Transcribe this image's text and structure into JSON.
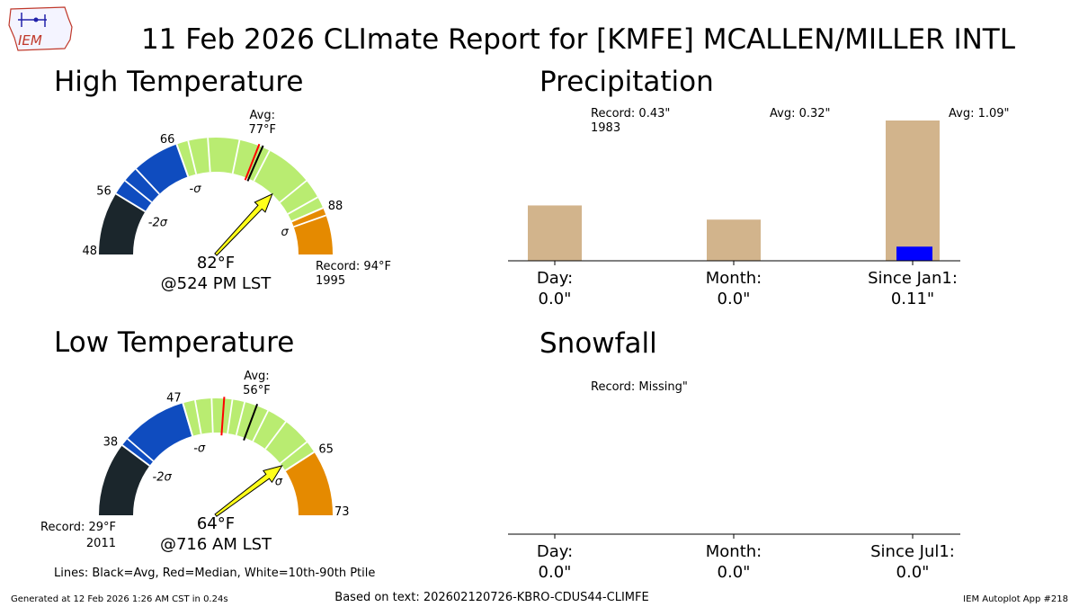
{
  "header": {
    "title": "11 Feb 2026 CLImate Report for [KMFE] MCALLEN/MILLER INTL",
    "logo_text": "IEM"
  },
  "colors": {
    "extreme_low": "#1b262c",
    "low": "#0f4cbf",
    "normal": "#b9ec71",
    "high": "#e58a00",
    "needle": "#ffff1a",
    "avg_line": "#000000",
    "median_line": "#ff0000",
    "ptile_line": "#ffffff",
    "bar_climo": "#d2b48c",
    "bar_obs": "#0000ff"
  },
  "chart_data": [
    {
      "id": "high",
      "type": "gauge",
      "title": "High Temperature",
      "min": 48,
      "max": 94,
      "bands": [
        {
          "from": 48,
          "to": 56,
          "color": "#1b262c"
        },
        {
          "from": 56,
          "to": 66,
          "color": "#0f4cbf"
        },
        {
          "from": 66,
          "to": 88,
          "color": "#b9ec71"
        },
        {
          "from": 88,
          "to": 94,
          "color": "#e58a00"
        }
      ],
      "threshold_labels": [
        {
          "value": 48,
          "text": "48"
        },
        {
          "value": 56,
          "text": "56"
        },
        {
          "value": 66,
          "text": "66"
        },
        {
          "value": 88,
          "text": "88"
        }
      ],
      "sigma_labels": [
        {
          "value": 56,
          "text": "-2σ"
        },
        {
          "value": 66,
          "text": "-σ"
        },
        {
          "value": 88,
          "text": "σ"
        }
      ],
      "avg": 77,
      "median": 76.5,
      "ptile_lines": [
        58,
        60,
        67.5,
        70,
        74,
        78,
        84,
        86.5,
        89
      ],
      "observed": 82,
      "avg_text": [
        "Avg:",
        "77°F"
      ],
      "value_text": "82°F",
      "time_text": "@524 PM LST",
      "record_text": [
        "Record: 94°F",
        "1995"
      ],
      "record_side": "right"
    },
    {
      "id": "low",
      "type": "gauge",
      "title": "Low Temperature",
      "min": 29,
      "max": 73,
      "bands": [
        {
          "from": 29,
          "to": 38,
          "color": "#1b262c"
        },
        {
          "from": 38,
          "to": 47,
          "color": "#0f4cbf"
        },
        {
          "from": 47,
          "to": 65,
          "color": "#b9ec71"
        },
        {
          "from": 65,
          "to": 73,
          "color": "#e58a00"
        }
      ],
      "threshold_labels": [
        {
          "value": 38,
          "text": "38"
        },
        {
          "value": 47,
          "text": "47"
        },
        {
          "value": 65,
          "text": "65"
        },
        {
          "value": 73,
          "text": "73"
        }
      ],
      "sigma_labels": [
        {
          "value": 38,
          "text": "-2σ"
        },
        {
          "value": 47,
          "text": "-σ"
        },
        {
          "value": 65,
          "text": "σ"
        }
      ],
      "avg": 56,
      "median": 52,
      "ptile_lines": [
        39,
        47,
        48.5,
        50.5,
        53,
        54.5,
        57.5,
        60,
        63.5
      ],
      "observed": 64,
      "avg_text": [
        "Avg:",
        "56°F"
      ],
      "value_text": "64°F",
      "time_text": "@716 AM LST",
      "record_text": [
        "Record: 29°F",
        "2011"
      ],
      "record_side": "left"
    },
    {
      "id": "precip",
      "type": "bar",
      "title": "Precipitation",
      "ymax": 1.09,
      "categories": [
        "Day:",
        "Month:",
        "Since Jan1:"
      ],
      "climo_values": [
        0.43,
        0.32,
        1.09
      ],
      "observed_values": [
        0.0,
        0.0,
        0.11
      ],
      "climo_labels": [
        [
          "Record: 0.43\"",
          "1983"
        ],
        [
          "Avg: 0.32\""
        ],
        [
          "Avg: 1.09\""
        ]
      ],
      "observed_labels": [
        "0.0\"",
        "0.0\"",
        "0.11\""
      ]
    },
    {
      "id": "snow",
      "type": "bar",
      "title": "Snowfall",
      "ymax": 1,
      "categories": [
        "Day:",
        "Month:",
        "Since Jul1:"
      ],
      "climo_values": [
        0,
        0,
        0
      ],
      "observed_values": [
        0,
        0,
        0
      ],
      "climo_labels": [
        [
          "Record: Missing\""
        ],
        [],
        []
      ],
      "observed_labels": [
        "0.0\"",
        "0.0\"",
        "0.0\""
      ]
    }
  ],
  "footer": {
    "legend_note": "Lines: Black=Avg, Red=Median, White=10th-90th Ptile",
    "generated": "Generated at 12 Feb 2026 1:26 AM CST in 0.24s",
    "based_on": "Based on text: 202602120726-KBRO-CDUS44-CLIMFE",
    "app": "IEM Autoplot App #218"
  }
}
